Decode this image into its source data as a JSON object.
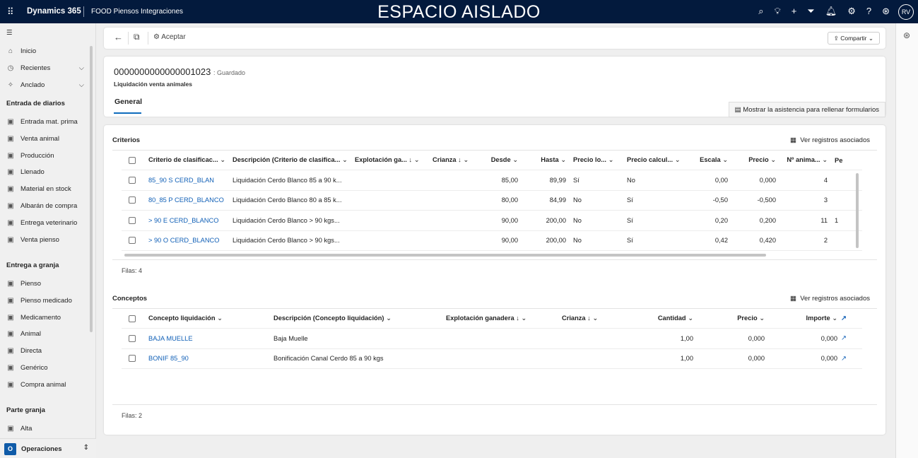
{
  "topbar": {
    "brand": "Dynamics 365",
    "environment": "FOOD Piensos Integraciones",
    "sandbox_label": "ESPACIO AISLADO",
    "avatar": "RV",
    "icons": [
      "search-icon",
      "lightbulb-icon",
      "plus-icon",
      "filter-icon",
      "bell-icon",
      "gear-icon",
      "help-icon",
      "copilot-icon"
    ]
  },
  "sidebar": {
    "top_items": [
      {
        "label": "Inicio",
        "icon": "home-icon"
      },
      {
        "label": "Recientes",
        "icon": "clock-icon"
      },
      {
        "label": "Anclado",
        "icon": "pin-icon"
      }
    ],
    "groups": [
      {
        "title": "Entrada de diarios",
        "items": [
          "Entrada mat. prima",
          "Venta animal",
          "Producción",
          "Llenado",
          "Material en stock",
          "Albarán de compra",
          "Entrega veterinario",
          "Venta pienso"
        ]
      },
      {
        "title": "Entrega a granja",
        "items": [
          "Pienso",
          "Pienso medicado",
          "Medicamento",
          "Animal",
          "Directa",
          "Genérico",
          "Compra animal"
        ]
      },
      {
        "title": "Parte granja",
        "items": [
          "Alta"
        ]
      }
    ],
    "area": {
      "badge": "O",
      "label": "Operaciones"
    }
  },
  "commandbar": {
    "accept": "Aceptar",
    "share": "Compartir"
  },
  "header": {
    "record_id": "0000000000000001023",
    "status": ": Guardado",
    "entity": "Liquidación venta animales",
    "tab": "General",
    "assist": "Mostrar la asistencia para rellenar formularios"
  },
  "criterios": {
    "title": "Criterios",
    "view_related": "Ver registros asociados",
    "columns": [
      "Criterio de clasificac...",
      "Descripción (Criterio de clasifica...",
      "Explotación ga... ↓",
      "Crianza ↓",
      "Desde",
      "Hasta",
      "Precio lo...",
      "Precio calcul...",
      "Escala",
      "Precio",
      "Nº anima...",
      "Pe"
    ],
    "rows": [
      [
        "85_90 S CERD_BLAN",
        "Liquidación Cerdo Blanco 85 a 90 k...",
        "",
        "",
        "85,00",
        "89,99",
        "Sí",
        "No",
        "0,00",
        "0,000",
        "4",
        ""
      ],
      [
        "80_85 P CERD_BLANCO",
        "Liquidación Cerdo Blanco 80 a 85 k...",
        "",
        "",
        "80,00",
        "84,99",
        "No",
        "Sí",
        "-0,50",
        "-0,500",
        "3",
        ""
      ],
      [
        "> 90 E CERD_BLANCO",
        "Liquidación Cerdo Blanco > 90 kgs...",
        "",
        "",
        "90,00",
        "200,00",
        "No",
        "Sí",
        "0,20",
        "0,200",
        "11",
        "1"
      ],
      [
        "> 90 O CERD_BLANCO",
        "Liquidación Cerdo Blanco > 90 kgs...",
        "",
        "",
        "90,00",
        "200,00",
        "No",
        "Sí",
        "0,42",
        "0,420",
        "2",
        ""
      ]
    ],
    "rows_label": "Filas: 4"
  },
  "conceptos": {
    "title": "Conceptos",
    "view_related": "Ver registros asociados",
    "columns": [
      "Concepto liquidación",
      "Descripción (Concepto liquidación)",
      "Explotación ganadera ↓",
      "Crianza ↓",
      "Cantidad",
      "Precio",
      "Importe"
    ],
    "rows": [
      [
        "BAJA MUELLE",
        "Baja Muelle",
        "",
        "",
        "1,00",
        "0,000",
        "0,000"
      ],
      [
        "BONIF 85_90",
        "Bonificación Canal Cerdo 85 a 90 kgs",
        "",
        "",
        "1,00",
        "0,000",
        "0,000"
      ]
    ],
    "rows_label": "Filas: 2"
  }
}
